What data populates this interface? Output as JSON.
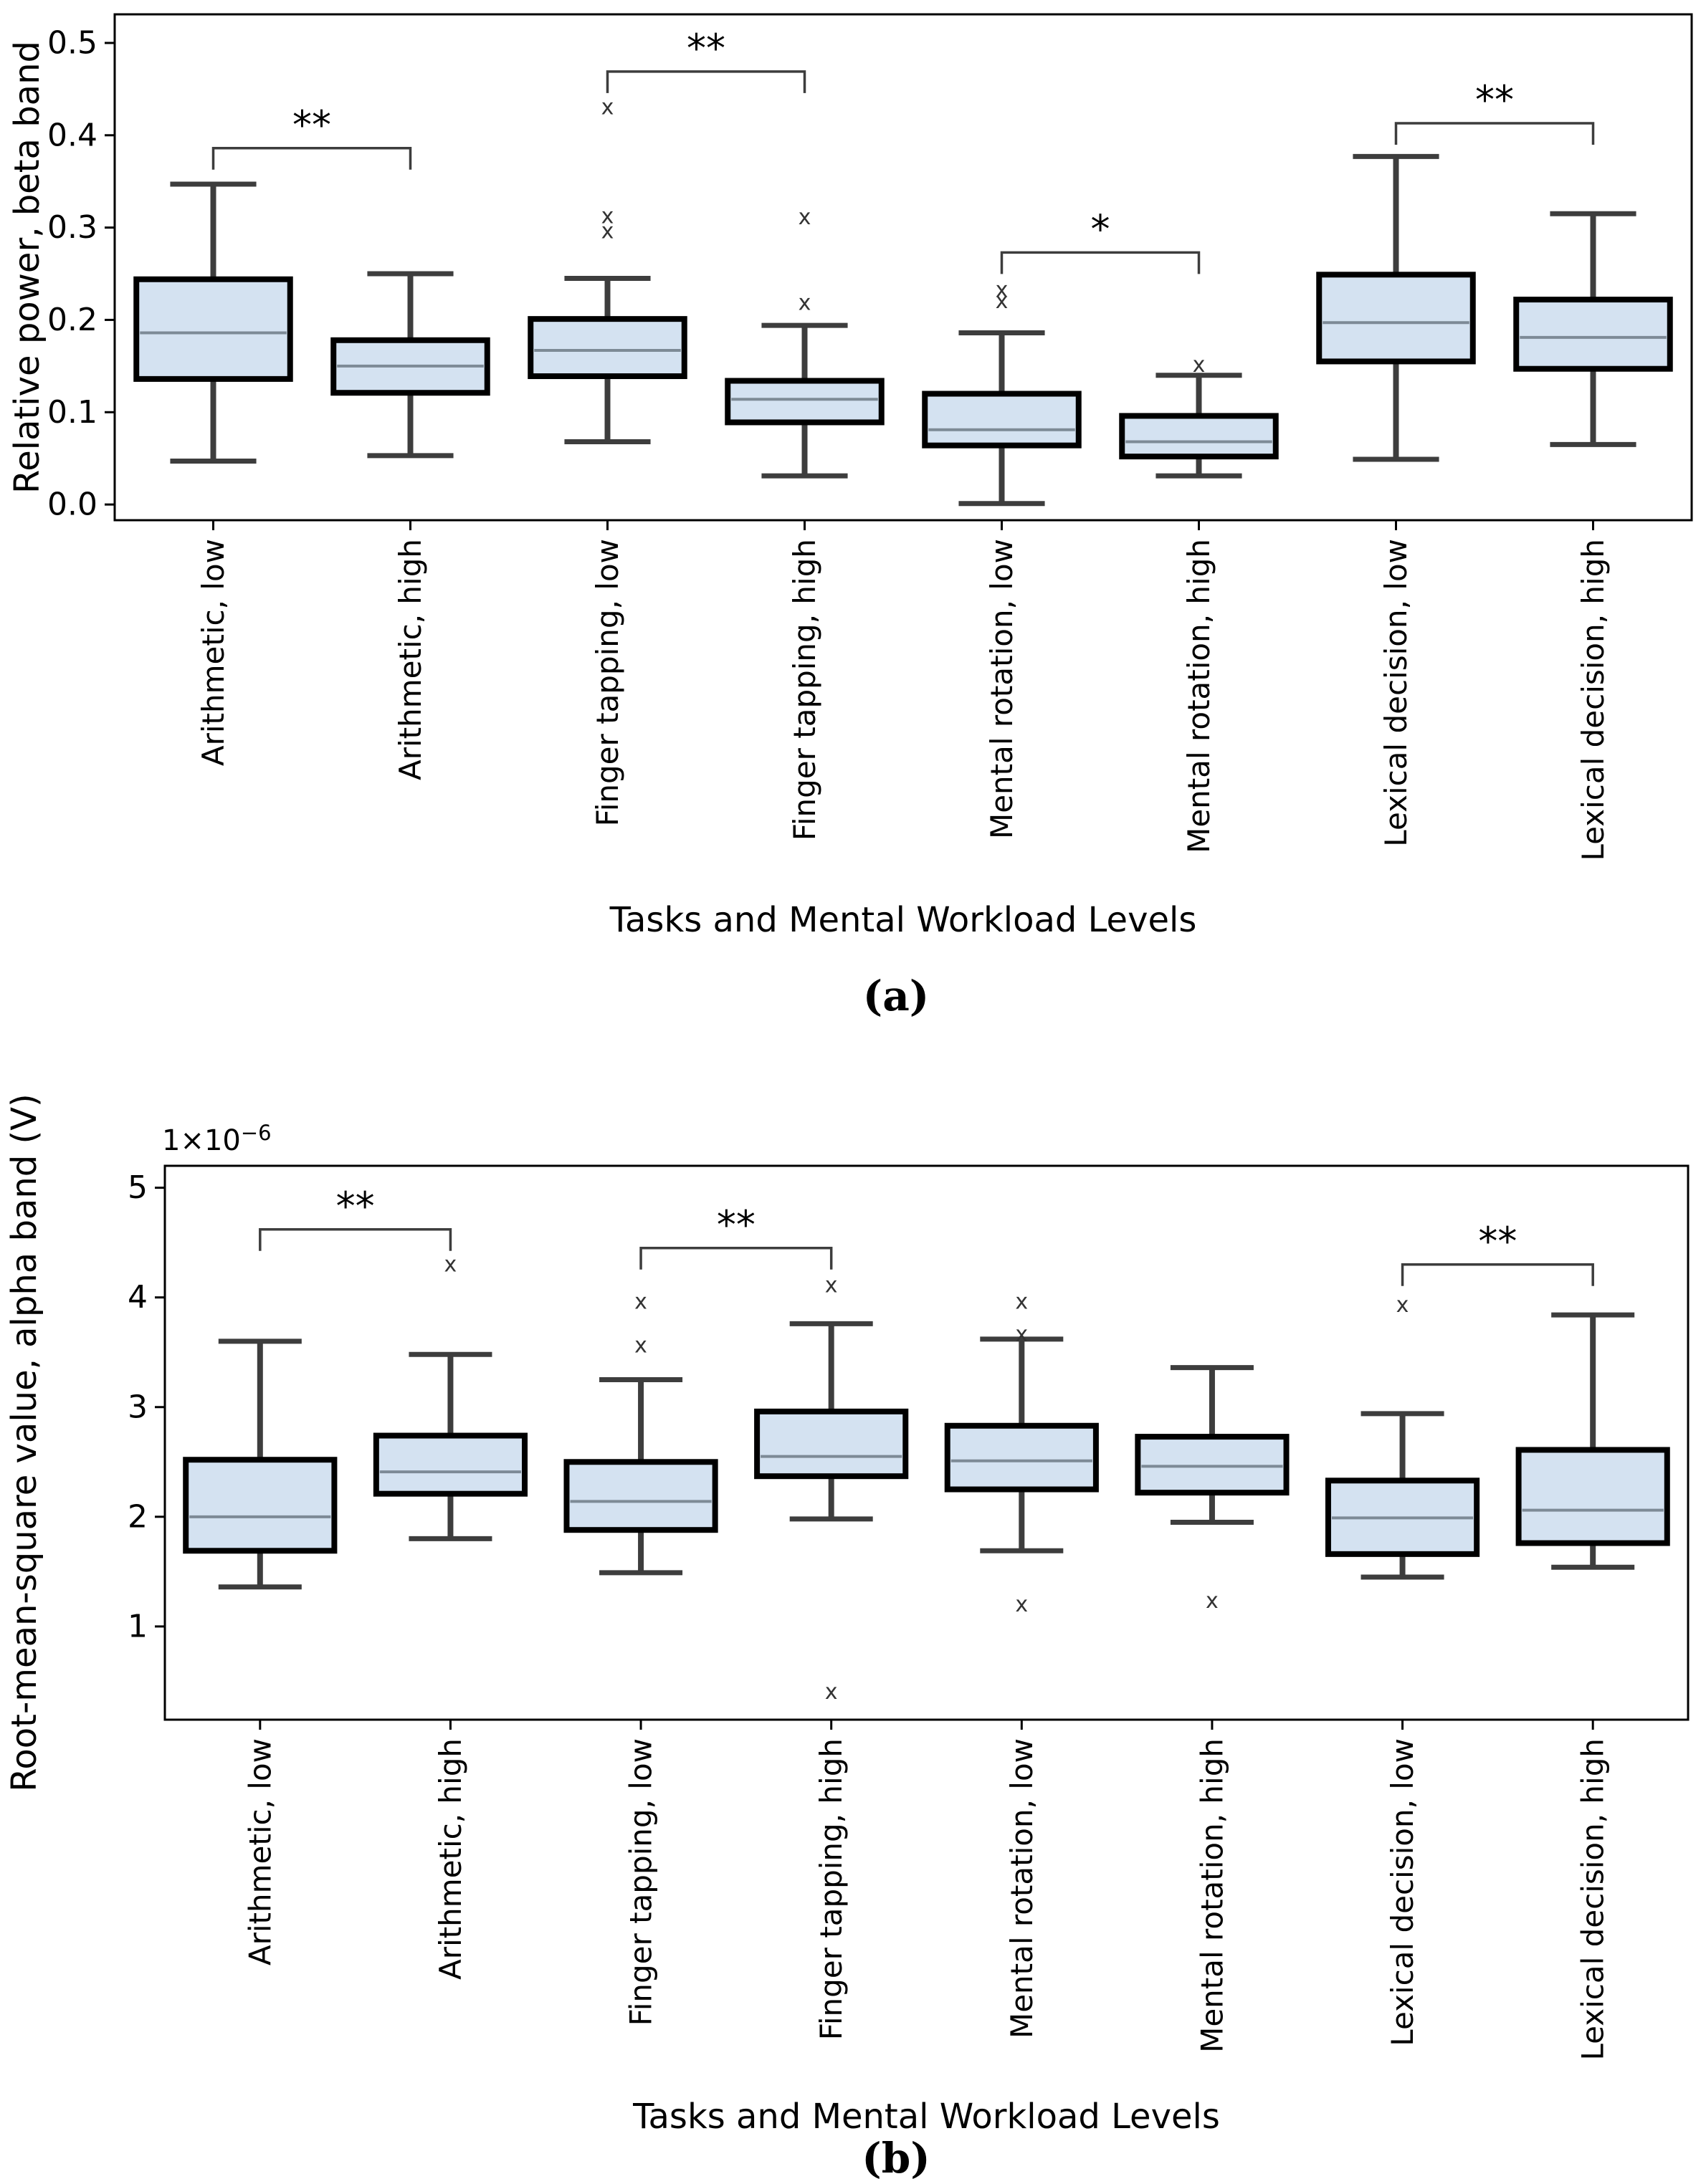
{
  "figure": {
    "background": "#ffffff",
    "captions": {
      "a": "(a)",
      "b": "(b)"
    }
  },
  "style": {
    "box_fill": "#d4e2f1",
    "box_edge": "#000000",
    "whisker_color": "#3d3d3d",
    "median_color": "#7d8a96",
    "outlier_color": "#333333",
    "bracket_color": "#3d3d3d",
    "text_color": "#000000",
    "outlier_marker": "x"
  },
  "chart_data": [
    {
      "id": "a",
      "type": "box",
      "xlabel": "Tasks and Mental Workload Levels",
      "ylabel": "Relative power, beta band",
      "ylim": [
        -0.017,
        0.531
      ],
      "yticks": [
        0.0,
        0.1,
        0.2,
        0.3,
        0.4,
        0.5
      ],
      "ytick_labels": [
        "0.0",
        "0.1",
        "0.2",
        "0.3",
        "0.4",
        "0.5"
      ],
      "grid": false,
      "legend": null,
      "categories": [
        "Arithmetic, low",
        "Arithmetic, high",
        "Finger tapping, low",
        "Finger tapping, high",
        "Mental rotation, low",
        "Mental rotation, high",
        "Lexical decision, low",
        "Lexical decision, high"
      ],
      "boxes": [
        {
          "label": "Arithmetic, low",
          "whislo": 0.047,
          "q1": 0.136,
          "med": 0.186,
          "q3": 0.244,
          "whishi": 0.347,
          "outliers": []
        },
        {
          "label": "Arithmetic, high",
          "whislo": 0.053,
          "q1": 0.121,
          "med": 0.15,
          "q3": 0.178,
          "whishi": 0.25,
          "outliers": []
        },
        {
          "label": "Finger tapping, low",
          "whislo": 0.068,
          "q1": 0.139,
          "med": 0.167,
          "q3": 0.201,
          "whishi": 0.245,
          "outliers": [
            0.296,
            0.312,
            0.43
          ]
        },
        {
          "label": "Finger tapping, high",
          "whislo": 0.031,
          "q1": 0.089,
          "med": 0.114,
          "q3": 0.134,
          "whishi": 0.194,
          "outliers": [
            0.218,
            0.311
          ]
        },
        {
          "label": "Mental rotation, low",
          "whislo": 0.001,
          "q1": 0.064,
          "med": 0.081,
          "q3": 0.12,
          "whishi": 0.186,
          "outliers": [
            0.22,
            0.232
          ]
        },
        {
          "label": "Mental rotation, high",
          "whislo": 0.031,
          "q1": 0.052,
          "med": 0.068,
          "q3": 0.096,
          "whishi": 0.14,
          "outliers": [
            0.151
          ]
        },
        {
          "label": "Lexical decision, low",
          "whislo": 0.049,
          "q1": 0.155,
          "med": 0.197,
          "q3": 0.249,
          "whishi": 0.377,
          "outliers": []
        },
        {
          "label": "Lexical decision, high",
          "whislo": 0.065,
          "q1": 0.147,
          "med": 0.181,
          "q3": 0.222,
          "whishi": 0.315,
          "outliers": []
        }
      ],
      "significance": [
        {
          "pair": [
            0,
            1
          ],
          "from": "Arithmetic, low",
          "to": "Arithmetic, high",
          "height": 0.386,
          "label": "**"
        },
        {
          "pair": [
            2,
            3
          ],
          "from": "Finger tapping, low",
          "to": "Finger tapping, high",
          "height": 0.469,
          "label": "**"
        },
        {
          "pair": [
            4,
            5
          ],
          "from": "Mental rotation, low",
          "to": "Mental rotation, high",
          "height": 0.273,
          "label": "*"
        },
        {
          "pair": [
            6,
            7
          ],
          "from": "Lexical decision, low",
          "to": "Lexical decision, high",
          "height": 0.413,
          "label": "**"
        }
      ]
    },
    {
      "id": "b",
      "type": "box",
      "xlabel": "Tasks and Mental Workload Levels",
      "ylabel": "Root-mean-square value, alpha band (V)",
      "offset_text": {
        "base": "1×10",
        "exponent": "−6"
      },
      "ylim": [
        0.15,
        5.2
      ],
      "yticks": [
        1,
        2,
        3,
        4,
        5
      ],
      "ytick_labels": [
        "1",
        "2",
        "3",
        "4",
        "5"
      ],
      "grid": false,
      "legend": null,
      "categories": [
        "Arithmetic, low",
        "Arithmetic, high",
        "Finger tapping, low",
        "Finger tapping, high",
        "Mental rotation, low",
        "Mental rotation, high",
        "Lexical decision, low",
        "Lexical decision, high"
      ],
      "boxes": [
        {
          "label": "Arithmetic, low",
          "whislo": 1.36,
          "q1": 1.69,
          "med": 2.0,
          "q3": 2.52,
          "whishi": 3.6,
          "outliers": []
        },
        {
          "label": "Arithmetic, high",
          "whislo": 1.8,
          "q1": 2.21,
          "med": 2.41,
          "q3": 2.74,
          "whishi": 3.48,
          "outliers": [
            4.3
          ]
        },
        {
          "label": "Finger tapping, low",
          "whislo": 1.49,
          "q1": 1.88,
          "med": 2.14,
          "q3": 2.5,
          "whishi": 3.25,
          "outliers": [
            3.56,
            3.96
          ]
        },
        {
          "label": "Finger tapping, high",
          "whislo": 1.98,
          "q1": 2.37,
          "med": 2.55,
          "q3": 2.96,
          "whishi": 3.76,
          "outliers": [
            4.11,
            0.4
          ]
        },
        {
          "label": "Mental rotation, low",
          "whislo": 1.69,
          "q1": 2.25,
          "med": 2.51,
          "q3": 2.83,
          "whishi": 3.62,
          "outliers": [
            3.96,
            3.66,
            1.2
          ]
        },
        {
          "label": "Mental rotation, high",
          "whislo": 1.95,
          "q1": 2.22,
          "med": 2.46,
          "q3": 2.73,
          "whishi": 3.36,
          "outliers": [
            1.23
          ]
        },
        {
          "label": "Lexical decision, low",
          "whislo": 1.45,
          "q1": 1.66,
          "med": 1.99,
          "q3": 2.33,
          "whishi": 2.94,
          "outliers": [
            3.93
          ]
        },
        {
          "label": "Lexical decision, high",
          "whislo": 1.54,
          "q1": 1.76,
          "med": 2.06,
          "q3": 2.61,
          "whishi": 3.84,
          "outliers": []
        }
      ],
      "significance": [
        {
          "pair": [
            0,
            1
          ],
          "from": "Arithmetic, low",
          "to": "Arithmetic, high",
          "height": 4.62,
          "label": "**"
        },
        {
          "pair": [
            2,
            3
          ],
          "from": "Finger tapping, low",
          "to": "Finger tapping, high",
          "height": 4.45,
          "label": "**"
        },
        {
          "pair": [
            6,
            7
          ],
          "from": "Lexical decision, low",
          "to": "Lexical decision, high",
          "height": 4.3,
          "label": "**"
        }
      ]
    }
  ]
}
